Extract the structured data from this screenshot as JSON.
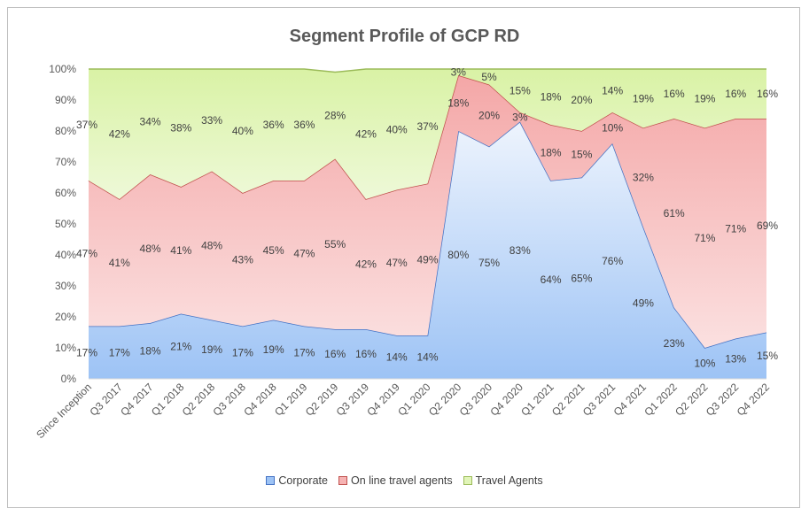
{
  "chart_data": {
    "type": "area",
    "stacked": true,
    "title": "Segment Profile of GCP RD",
    "categories": [
      "Since Inception",
      "Q3 2017",
      "Q4 2017",
      "Q1 2018",
      "Q2 2018",
      "Q3 2018",
      "Q4 2018",
      "Q1 2019",
      "Q2 2019",
      "Q3 2019",
      "Q4 2019",
      "Q1 2020",
      "Q2 2020",
      "Q3 2020",
      "Q4 2020",
      "Q1 2021",
      "Q2 2021",
      "Q3 2021",
      "Q4 2021",
      "Q1 2022",
      "Q2 2022",
      "Q3 2022",
      "Q4 2022"
    ],
    "y_tick_labels": [
      "0%",
      "10%",
      "20%",
      "30%",
      "40%",
      "50%",
      "60%",
      "70%",
      "80%",
      "90%",
      "100%"
    ],
    "ylim": [
      0,
      100
    ],
    "legend_position": "bottom",
    "series": [
      {
        "name": "Corporate",
        "color": "#9dc3f5",
        "label_color": "#4472c4",
        "values": [
          17,
          17,
          18,
          21,
          19,
          17,
          19,
          17,
          16,
          16,
          14,
          14,
          80,
          75,
          83,
          64,
          65,
          76,
          49,
          23,
          10,
          13,
          15
        ]
      },
      {
        "name": "On line travel agents",
        "color": "#f6b3b3",
        "label_color": "#c0504d",
        "values": [
          47,
          41,
          48,
          41,
          48,
          43,
          45,
          47,
          55,
          42,
          47,
          49,
          18,
          20,
          3,
          18,
          15,
          10,
          32,
          61,
          71,
          71,
          69
        ]
      },
      {
        "name": "Travel Agents",
        "color": "#e1f5b8",
        "label_color": "#9bbb59",
        "values": [
          37,
          42,
          34,
          38,
          33,
          40,
          36,
          36,
          28,
          42,
          40,
          37,
          3,
          5,
          15,
          18,
          20,
          14,
          19,
          16,
          19,
          16,
          16
        ]
      }
    ]
  }
}
